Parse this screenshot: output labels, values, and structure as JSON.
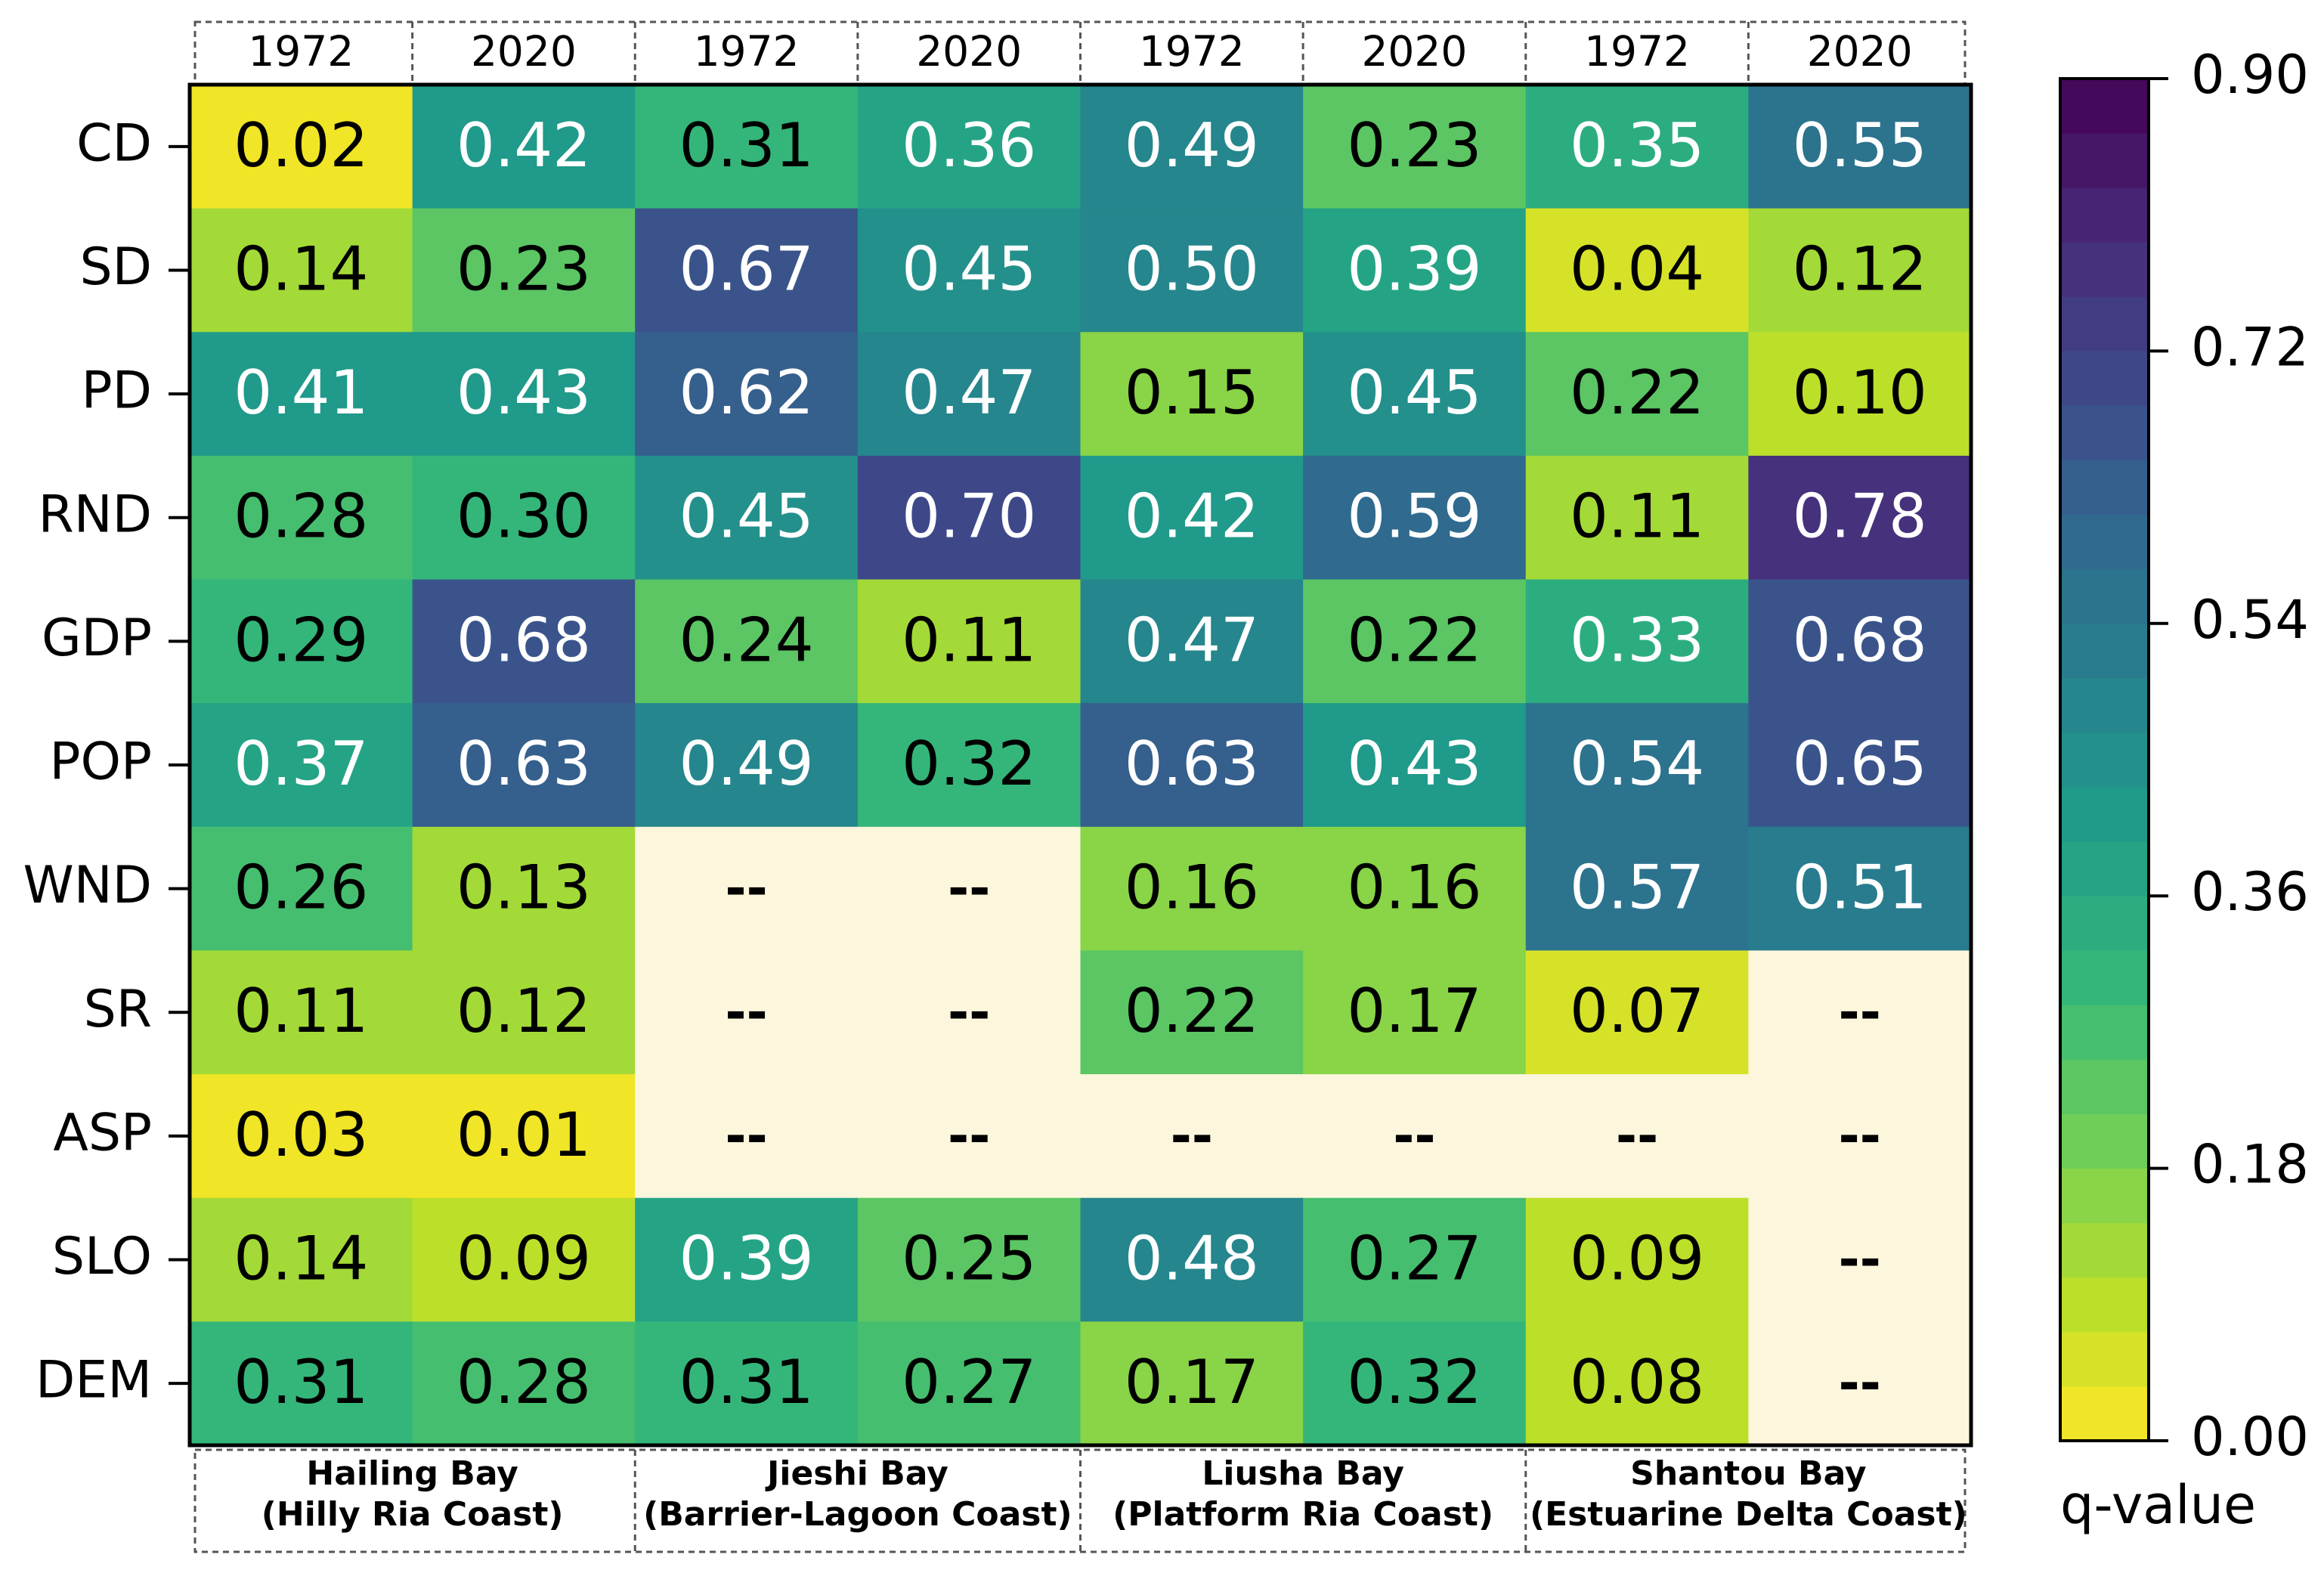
{
  "chart_data": {
    "type": "heatmap",
    "rows": [
      "CD",
      "SD",
      "PD",
      "RND",
      "GDP",
      "POP",
      "WND",
      "SR",
      "ASP",
      "SLO",
      "DEM"
    ],
    "columns": [
      "1972",
      "2020",
      "1972",
      "2020",
      "1972",
      "2020",
      "1972",
      "2020"
    ],
    "groups": [
      [
        "Hailing Bay",
        "(Hilly Ria Coast)"
      ],
      [
        "Jieshi Bay",
        "(Barrier-Lagoon Coast)"
      ],
      [
        "Liusha Bay",
        "(Platform Ria Coast)"
      ],
      [
        "Shantou Bay",
        "(Estuarine Delta Coast)"
      ]
    ],
    "values": [
      [
        0.02,
        0.42,
        0.31,
        0.36,
        0.49,
        0.23,
        0.35,
        0.55
      ],
      [
        0.14,
        0.23,
        0.67,
        0.45,
        0.5,
        0.39,
        0.04,
        0.12
      ],
      [
        0.41,
        0.43,
        0.62,
        0.47,
        0.15,
        0.45,
        0.22,
        0.1
      ],
      [
        0.28,
        0.3,
        0.45,
        0.7,
        0.42,
        0.59,
        0.11,
        0.78
      ],
      [
        0.29,
        0.68,
        0.24,
        0.11,
        0.47,
        0.22,
        0.33,
        0.68
      ],
      [
        0.37,
        0.63,
        0.49,
        0.32,
        0.63,
        0.43,
        0.54,
        0.65
      ],
      [
        0.26,
        0.13,
        null,
        null,
        0.16,
        0.16,
        0.57,
        0.51
      ],
      [
        0.11,
        0.12,
        null,
        null,
        0.22,
        0.17,
        0.07,
        null
      ],
      [
        0.03,
        0.01,
        null,
        null,
        null,
        null,
        null,
        null
      ],
      [
        0.14,
        0.09,
        0.39,
        0.25,
        0.48,
        0.27,
        0.09,
        null
      ],
      [
        0.31,
        0.28,
        0.31,
        0.27,
        0.17,
        0.32,
        0.08,
        null
      ]
    ],
    "value_labels": [
      [
        "0.02",
        "0.42",
        "0.31",
        "0.36",
        "0.49",
        "0.23",
        "0.35",
        "0.55"
      ],
      [
        "0.14",
        "0.23",
        "0.67",
        "0.45",
        "0.50",
        "0.39",
        "0.04",
        "0.12"
      ],
      [
        "0.41",
        "0.43",
        "0.62",
        "0.47",
        "0.15",
        "0.45",
        "0.22",
        "0.10"
      ],
      [
        "0.28",
        "0.30",
        "0.45",
        "0.70",
        "0.42",
        "0.59",
        "0.11",
        "0.78"
      ],
      [
        "0.29",
        "0.68",
        "0.24",
        "0.11",
        "0.47",
        "0.22",
        "0.33",
        "0.68"
      ],
      [
        "0.37",
        "0.63",
        "0.49",
        "0.32",
        "0.63",
        "0.43",
        "0.54",
        "0.65"
      ],
      [
        "0.26",
        "0.13",
        null,
        null,
        "0.16",
        "0.16",
        "0.57",
        "0.51"
      ],
      [
        "0.11",
        "0.12",
        null,
        null,
        "0.22",
        "0.17",
        "0.07",
        null
      ],
      [
        "0.03",
        "0.01",
        null,
        null,
        null,
        null,
        null,
        null
      ],
      [
        "0.14",
        "0.09",
        "0.39",
        "0.25",
        "0.48",
        "0.27",
        "0.09",
        null
      ],
      [
        "0.31",
        "0.28",
        "0.31",
        "0.27",
        "0.17",
        "0.32",
        "0.08",
        null
      ]
    ],
    "missing_label": "--",
    "missing_color": "#fcf6dc",
    "colormap": "viridis_r",
    "levels": 25,
    "zlim": [
      0,
      0.9
    ],
    "zticks": [
      {
        "value": 0,
        "label": "0.00"
      },
      0.18,
      0.36,
      0.54,
      0.72,
      {
        "value": 0.9,
        "label": "0.90"
      }
    ],
    "colorbar_label": "q-value"
  }
}
